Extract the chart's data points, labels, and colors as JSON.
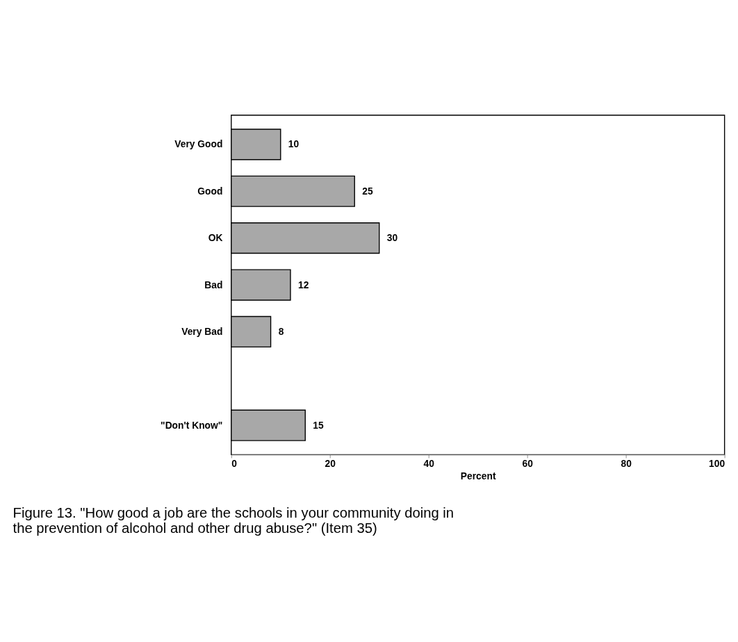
{
  "chart_data": {
    "type": "bar",
    "orientation": "horizontal",
    "categories": [
      "Very Good",
      "Good",
      "OK",
      "Bad",
      "Very Bad",
      null,
      "\"Don't Know\""
    ],
    "values": [
      10,
      25,
      30,
      12,
      8,
      null,
      15
    ],
    "color": "#a8a8a8",
    "data_labels": true,
    "xlabel": "Percent",
    "xlim": [
      0,
      100
    ],
    "xticks": [
      0,
      20,
      40,
      60,
      80,
      100
    ],
    "grid": false,
    "annotations": [
      "Figure 13.  \"How good a job are the schools in your community doing in the prevention of alcohol and other drug abuse?\"  (Item 35)"
    ]
  }
}
